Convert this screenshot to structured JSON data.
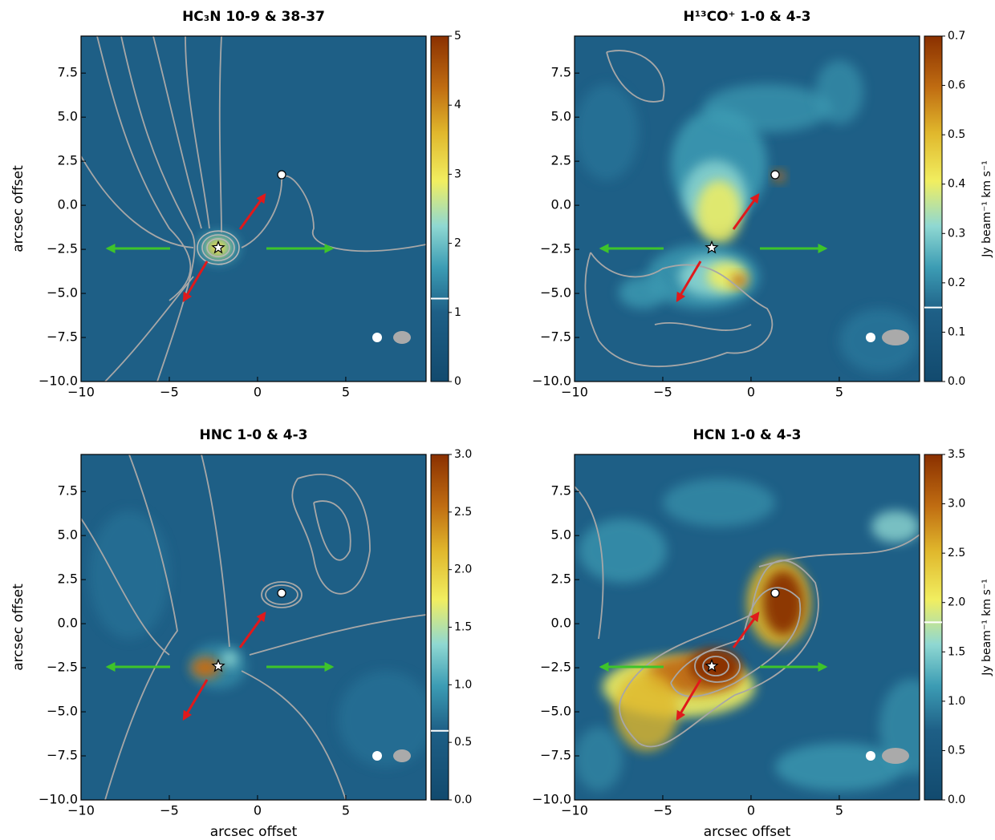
{
  "chart_data": [
    {
      "type": "image",
      "title": "HC₃N 10-9 & 38-37",
      "ylabel": "arcsec offset",
      "xlim": [
        -10,
        9.55
      ],
      "ylim": [
        -10,
        9.6
      ],
      "xticks": [
        {
          "value": -10,
          "label": "−10"
        },
        {
          "value": -5,
          "label": "−5"
        },
        0,
        5
      ],
      "yticks": [
        {
          "value": -10,
          "label": "−10.0"
        },
        {
          "value": -7.5,
          "label": "−7.5"
        },
        {
          "value": -5,
          "label": "−5.0"
        },
        {
          "value": -2.5,
          "label": "−2.5"
        },
        {
          "value": 0,
          "label": "0.0"
        },
        2.5,
        {
          "value": 5,
          "label": "5.0"
        },
        7.5
      ],
      "clim": [
        0,
        5
      ],
      "cticks": [
        0,
        1,
        2,
        3,
        4,
        5
      ],
      "colorbar_line": 1.2
    },
    {
      "type": "image",
      "title": "H¹³CO⁺ 1-0 & 4-3",
      "colorbar_label": "Jy beam⁻¹ km s⁻¹",
      "xlim": [
        -10,
        9.55
      ],
      "ylim": [
        -10,
        9.6
      ],
      "xticks": [
        {
          "value": -10,
          "label": "−10"
        },
        {
          "value": -5,
          "label": "−5"
        },
        0,
        5
      ],
      "yticks": [
        {
          "value": -10,
          "label": "−10.0"
        },
        {
          "value": -7.5,
          "label": "−7.5"
        },
        {
          "value": -5,
          "label": "−5.0"
        },
        {
          "value": -2.5,
          "label": "−2.5"
        },
        {
          "value": 0,
          "label": "0.0"
        },
        2.5,
        {
          "value": 5,
          "label": "5.0"
        },
        7.5
      ],
      "clim": [
        0,
        0.7
      ],
      "cticks": [
        {
          "value": 0,
          "label": "0.0"
        },
        0.1,
        0.2,
        0.3,
        0.4,
        0.5,
        0.6,
        0.7
      ],
      "colorbar_line": 0.15
    },
    {
      "type": "image",
      "title": "HNC 1-0 & 4-3",
      "xlabel": "arcsec offset",
      "ylabel": "arcsec offset",
      "xlim": [
        -10,
        9.55
      ],
      "ylim": [
        -10,
        9.6
      ],
      "xticks": [
        {
          "value": -10,
          "label": "−10"
        },
        {
          "value": -5,
          "label": "−5"
        },
        0,
        5
      ],
      "yticks": [
        {
          "value": -10,
          "label": "−10.0"
        },
        {
          "value": -7.5,
          "label": "−7.5"
        },
        {
          "value": -5,
          "label": "−5.0"
        },
        {
          "value": -2.5,
          "label": "−2.5"
        },
        {
          "value": 0,
          "label": "0.0"
        },
        2.5,
        {
          "value": 5,
          "label": "5.0"
        },
        7.5
      ],
      "clim": [
        0,
        3
      ],
      "cticks": [
        {
          "value": 0,
          "label": "0.0"
        },
        0.5,
        {
          "value": 1,
          "label": "1.0"
        },
        1.5,
        {
          "value": 2,
          "label": "2.0"
        },
        2.5,
        {
          "value": 3,
          "label": "3.0"
        }
      ],
      "colorbar_line": 0.6
    },
    {
      "type": "image",
      "title": "HCN 1-0 & 4-3",
      "xlabel": "arcsec offset",
      "colorbar_label": "Jy beam⁻¹ km s⁻¹",
      "xlim": [
        -10,
        9.55
      ],
      "ylim": [
        -10,
        9.6
      ],
      "xticks": [
        {
          "value": -10,
          "label": "−10"
        },
        {
          "value": -5,
          "label": "−5"
        },
        0,
        5
      ],
      "yticks": [
        {
          "value": -10,
          "label": "−10.0"
        },
        {
          "value": -7.5,
          "label": "−7.5"
        },
        {
          "value": -5,
          "label": "−5.0"
        },
        {
          "value": -2.5,
          "label": "−2.5"
        },
        {
          "value": 0,
          "label": "0.0"
        },
        2.5,
        {
          "value": 5,
          "label": "5.0"
        },
        7.5
      ],
      "clim": [
        0,
        3.5
      ],
      "cticks": [
        {
          "value": 0,
          "label": "0.0"
        },
        0.5,
        {
          "value": 1,
          "label": "1.0"
        },
        1.5,
        {
          "value": 2,
          "label": "2.0"
        },
        2.5,
        {
          "value": 3,
          "label": "3.0"
        },
        3.5
      ],
      "colorbar_line": 1.8
    }
  ]
}
